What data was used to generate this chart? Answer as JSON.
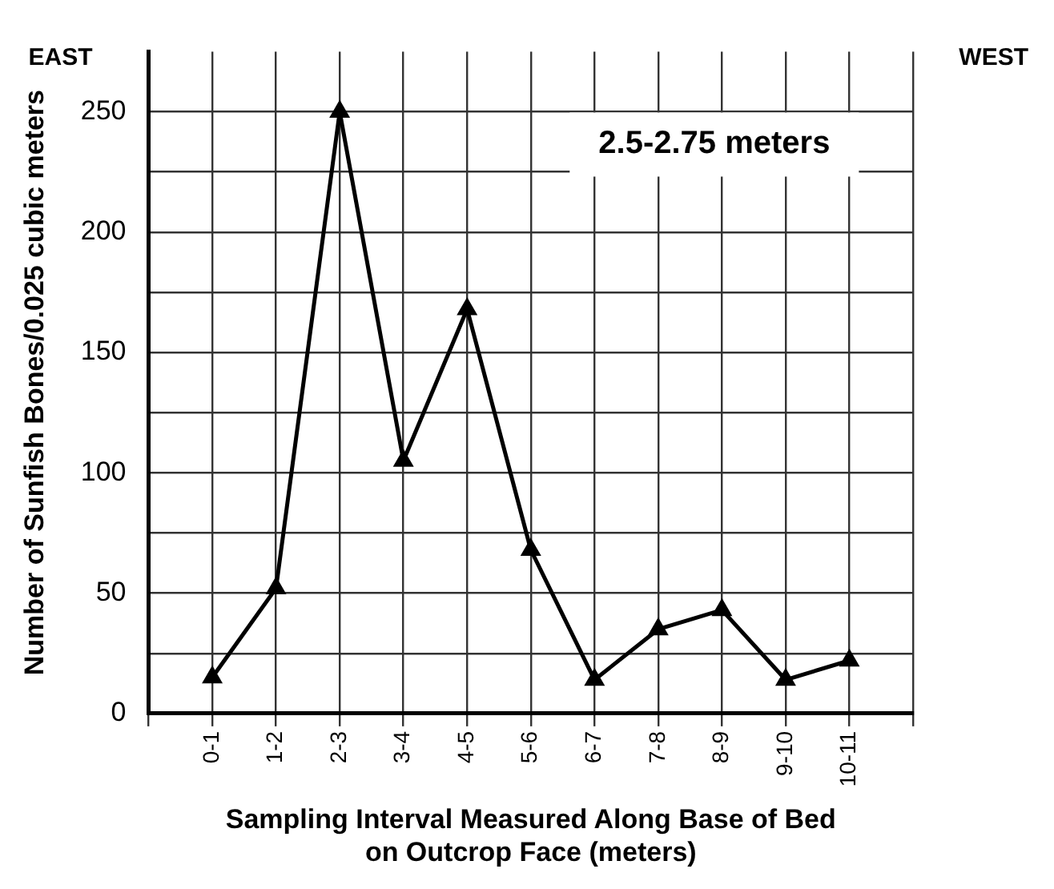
{
  "chart_data": {
    "type": "line",
    "xlabel": "Sampling Interval Measured Along Base of Bed\non Outcrop Face (meters)",
    "ylabel": "Number of Sunfish Bones/0.025 cubic meters",
    "annotations": [
      "EAST",
      "WEST",
      "2.5-2.75 meters"
    ],
    "categories": [
      "0-1",
      "1-2",
      "2-3",
      "3-4",
      "4-5",
      "5-6",
      "6-7",
      "7-8",
      "8-9",
      "9-10",
      "10-11"
    ],
    "series": [
      {
        "color": "#000000",
        "values": [
          15,
          52,
          250,
          105,
          168,
          68,
          14,
          35,
          43,
          14,
          22
        ]
      }
    ],
    "ylim": [
      0,
      275
    ],
    "yticks": [
      0,
      {
        "value": 25,
        "label": null
      },
      50,
      {
        "value": 75,
        "label": null
      },
      100,
      {
        "value": 125,
        "label": null
      },
      150,
      {
        "value": 175,
        "label": null
      },
      200,
      {
        "value": 225,
        "label": null
      },
      250
    ],
    "grid": true,
    "legend": false,
    "marker": "triangle",
    "line_style": "solid"
  }
}
